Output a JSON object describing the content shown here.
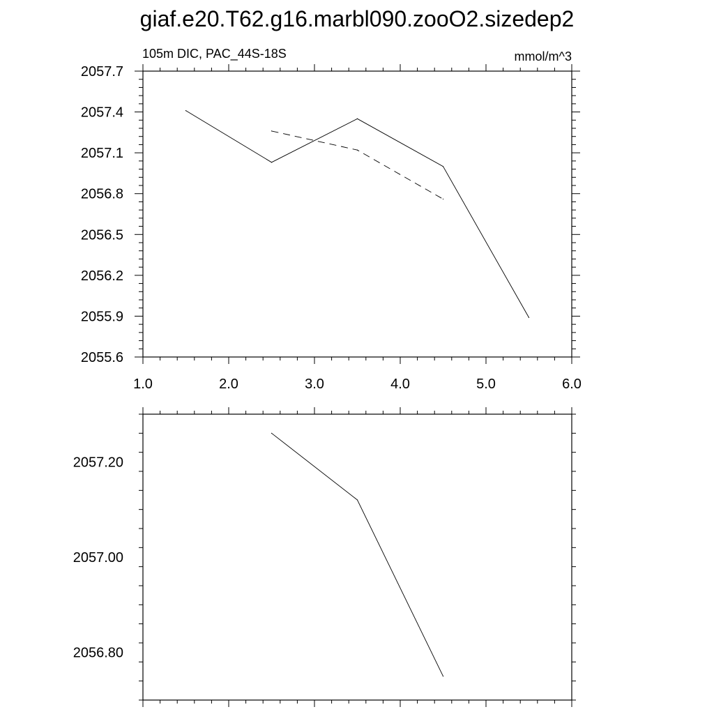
{
  "title": "giaf.e20.T62.g16.marbl090.zooO2.sizedep2",
  "chart_data": [
    {
      "type": "line",
      "left_label": "105m DIC, PAC_44S-18S",
      "right_label": "mmol/m^3",
      "xlim": [
        1.0,
        6.0
      ],
      "ylim": [
        2055.6,
        2057.7
      ],
      "x_ticks": [
        "1.0",
        "2.0",
        "3.0",
        "4.0",
        "5.0",
        "6.0"
      ],
      "y_ticks": [
        "2055.6",
        "2055.9",
        "2056.2",
        "2056.5",
        "2056.8",
        "2057.1",
        "2057.4",
        "2057.7"
      ],
      "series": [
        {
          "style": "solid",
          "x": [
            1.5,
            2.5,
            3.5,
            4.5,
            5.5
          ],
          "y": [
            2057.41,
            2057.03,
            2057.35,
            2057.0,
            2055.89
          ]
        },
        {
          "style": "dashed",
          "x": [
            2.5,
            3.5,
            4.5
          ],
          "y": [
            2057.26,
            2057.12,
            2056.76
          ]
        }
      ]
    },
    {
      "type": "line",
      "xlim": [
        1.0,
        6.0
      ],
      "ylim": [
        2056.7,
        2057.3
      ],
      "x_ticks": [],
      "y_ticks": [
        "2056.80",
        "2057.00",
        "2057.20"
      ],
      "series": [
        {
          "style": "solid",
          "x": [
            2.5,
            3.5,
            4.5
          ],
          "y": [
            2057.26,
            2057.12,
            2056.75
          ]
        }
      ]
    }
  ]
}
